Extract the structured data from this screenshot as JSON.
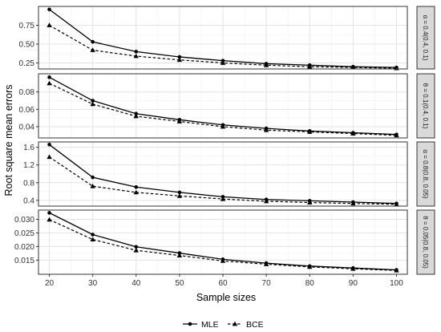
{
  "chart_data": {
    "type": "line",
    "xlabel": "Sample sizes",
    "ylabel": "Root square mean errors",
    "x": [
      20,
      30,
      40,
      50,
      60,
      70,
      80,
      90,
      100
    ],
    "x_ticks": [
      20,
      30,
      40,
      50,
      60,
      70,
      80,
      90,
      100
    ],
    "xlim": [
      17.5,
      102.5
    ],
    "grid": true,
    "legend_position": "bottom",
    "legend": [
      {
        "name": "MLE",
        "line": "solid",
        "marker": "circle"
      },
      {
        "name": "BCE",
        "line": "dashed",
        "marker": "triangle"
      }
    ],
    "panels": [
      {
        "strip_label": "α = 0.4(0.4, 0.1)",
        "ylim": [
          0.17,
          1.0
        ],
        "y_ticks": [
          0.25,
          0.5,
          0.75
        ],
        "y_tick_labels": [
          "0.25",
          "0.50",
          "0.75"
        ],
        "series": [
          {
            "name": "MLE",
            "values": [
              0.96,
              0.53,
              0.4,
              0.33,
              0.28,
              0.24,
              0.22,
              0.2,
              0.19
            ]
          },
          {
            "name": "BCE",
            "values": [
              0.75,
              0.42,
              0.34,
              0.29,
              0.25,
              0.22,
              0.2,
              0.19,
              0.18
            ]
          }
        ]
      },
      {
        "strip_label": "θ = 0.1(0.4, 0.1)",
        "ylim": [
          0.027,
          0.101
        ],
        "y_ticks": [
          0.04,
          0.06,
          0.08
        ],
        "y_tick_labels": [
          "0.04",
          "0.06",
          "0.08"
        ],
        "series": [
          {
            "name": "MLE",
            "values": [
              0.097,
              0.07,
              0.055,
              0.048,
              0.042,
              0.038,
              0.035,
              0.033,
              0.031
            ]
          },
          {
            "name": "BCE",
            "values": [
              0.09,
              0.066,
              0.052,
              0.046,
              0.04,
              0.036,
              0.034,
              0.032,
              0.03
            ]
          }
        ]
      },
      {
        "strip_label": "α = 0.8(0.8, 0.05)",
        "ylim": [
          0.27,
          1.72
        ],
        "y_ticks": [
          0.4,
          0.8,
          1.2,
          1.6
        ],
        "y_tick_labels": [
          "0.4",
          "0.8",
          "1.2",
          "1.6"
        ],
        "series": [
          {
            "name": "MLE",
            "values": [
              1.66,
              0.92,
              0.7,
              0.58,
              0.48,
              0.42,
              0.39,
              0.36,
              0.33
            ]
          },
          {
            "name": "BCE",
            "values": [
              1.38,
              0.72,
              0.58,
              0.5,
              0.43,
              0.38,
              0.35,
              0.33,
              0.31
            ]
          }
        ]
      },
      {
        "strip_label": "θ = 0.05(0.8, 0.05)",
        "ylim": [
          0.0098,
          0.0334
        ],
        "y_ticks": [
          0.015,
          0.02,
          0.025,
          0.03
        ],
        "y_tick_labels": [
          "0.015",
          "0.020",
          "0.025",
          "0.030"
        ],
        "series": [
          {
            "name": "MLE",
            "values": [
              0.0324,
              0.0244,
              0.0199,
              0.0176,
              0.0153,
              0.0139,
              0.0128,
              0.0121,
              0.0114
            ]
          },
          {
            "name": "BCE",
            "values": [
              0.0299,
              0.0226,
              0.0186,
              0.0167,
              0.0147,
              0.0135,
              0.0125,
              0.0118,
              0.0112
            ]
          }
        ]
      }
    ]
  }
}
